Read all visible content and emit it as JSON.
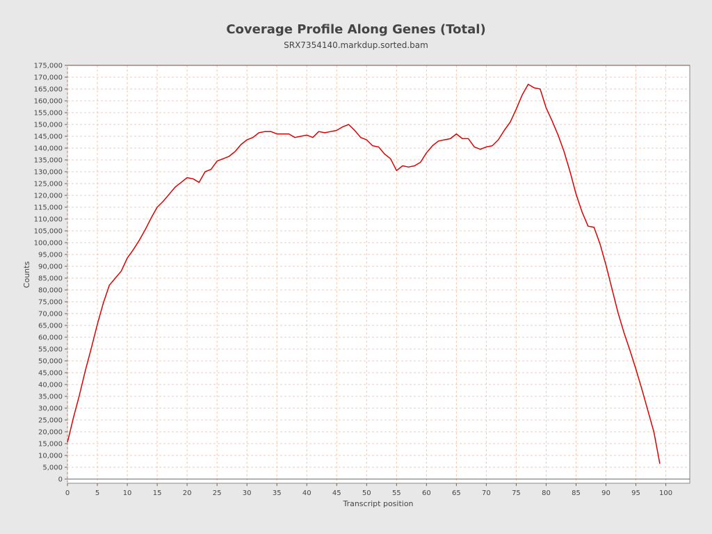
{
  "chart_data": {
    "type": "line",
    "title": "Coverage Profile Along Genes (Total)",
    "subtitle": "SRX7354140.markdup.sorted.bam",
    "xlabel": "Transcript position",
    "ylabel": "Counts",
    "xlim": [
      0,
      104
    ],
    "ylim": [
      0,
      175000
    ],
    "x_ticks": [
      0,
      5,
      10,
      15,
      20,
      25,
      30,
      35,
      40,
      45,
      50,
      55,
      60,
      65,
      70,
      75,
      80,
      85,
      90,
      95,
      100
    ],
    "y_ticks": [
      0,
      5000,
      10000,
      15000,
      20000,
      25000,
      30000,
      35000,
      40000,
      45000,
      50000,
      55000,
      60000,
      65000,
      70000,
      75000,
      80000,
      85000,
      90000,
      95000,
      100000,
      105000,
      110000,
      115000,
      120000,
      125000,
      130000,
      135000,
      140000,
      145000,
      150000,
      155000,
      160000,
      165000,
      170000,
      175000
    ],
    "y_tick_labels": [
      "0",
      "5,000",
      "10,000",
      "15,000",
      "20,000",
      "25,000",
      "30,000",
      "35,000",
      "40,000",
      "45,000",
      "50,000",
      "55,000",
      "60,000",
      "65,000",
      "70,000",
      "75,000",
      "80,000",
      "85,000",
      "90,000",
      "95,000",
      "100,000",
      "105,000",
      "110,000",
      "115,000",
      "120,000",
      "125,000",
      "130,000",
      "135,000",
      "140,000",
      "145,000",
      "150,000",
      "155,000",
      "160,000",
      "165,000",
      "170,000",
      "175,000"
    ],
    "grid": true,
    "series": [
      {
        "color": "#dd0000",
        "x": [
          0,
          1,
          2,
          3,
          4,
          5,
          6,
          7,
          8,
          9,
          10,
          11,
          12,
          13,
          14,
          15,
          16,
          17,
          18,
          19,
          20,
          21,
          22,
          23,
          24,
          25,
          26,
          27,
          28,
          29,
          30,
          31,
          32,
          33,
          34,
          35,
          36,
          37,
          38,
          39,
          40,
          41,
          42,
          43,
          44,
          45,
          46,
          47,
          48,
          49,
          50,
          51,
          52,
          53,
          54,
          55,
          56,
          57,
          58,
          59,
          60,
          61,
          62,
          63,
          64,
          65,
          66,
          67,
          68,
          69,
          70,
          71,
          72,
          73,
          74,
          75,
          76,
          77,
          78,
          79,
          80,
          81,
          82,
          83,
          84,
          85,
          86,
          87,
          88,
          89,
          90,
          91,
          92,
          93,
          94,
          95,
          96,
          97,
          98,
          99
        ],
        "values": [
          15500,
          26000,
          35500,
          46000,
          55500,
          65500,
          74500,
          82000,
          85000,
          88000,
          93500,
          97000,
          101000,
          105500,
          110500,
          115000,
          117500,
          120500,
          123500,
          125500,
          127500,
          127000,
          125500,
          130000,
          131000,
          134500,
          135500,
          136500,
          138500,
          141500,
          143500,
          144500,
          146500,
          147000,
          147000,
          146000,
          146000,
          146000,
          144500,
          145000,
          145500,
          144500,
          147000,
          146500,
          147000,
          147500,
          149000,
          150000,
          147500,
          144500,
          143500,
          141000,
          140500,
          137500,
          135500,
          130500,
          132500,
          132000,
          132500,
          134000,
          138000,
          141000,
          143000,
          143500,
          144000,
          146000,
          144000,
          144000,
          140500,
          139500,
          140500,
          141000,
          143500,
          147500,
          151000,
          156500,
          162500,
          167000,
          165500,
          165000,
          157000,
          151500,
          145500,
          138500,
          130000,
          120500,
          113000,
          107000,
          106500,
          99500,
          90500,
          80500,
          70500,
          62000,
          54500,
          46500,
          38000,
          29000,
          20000,
          6500
        ]
      }
    ]
  }
}
